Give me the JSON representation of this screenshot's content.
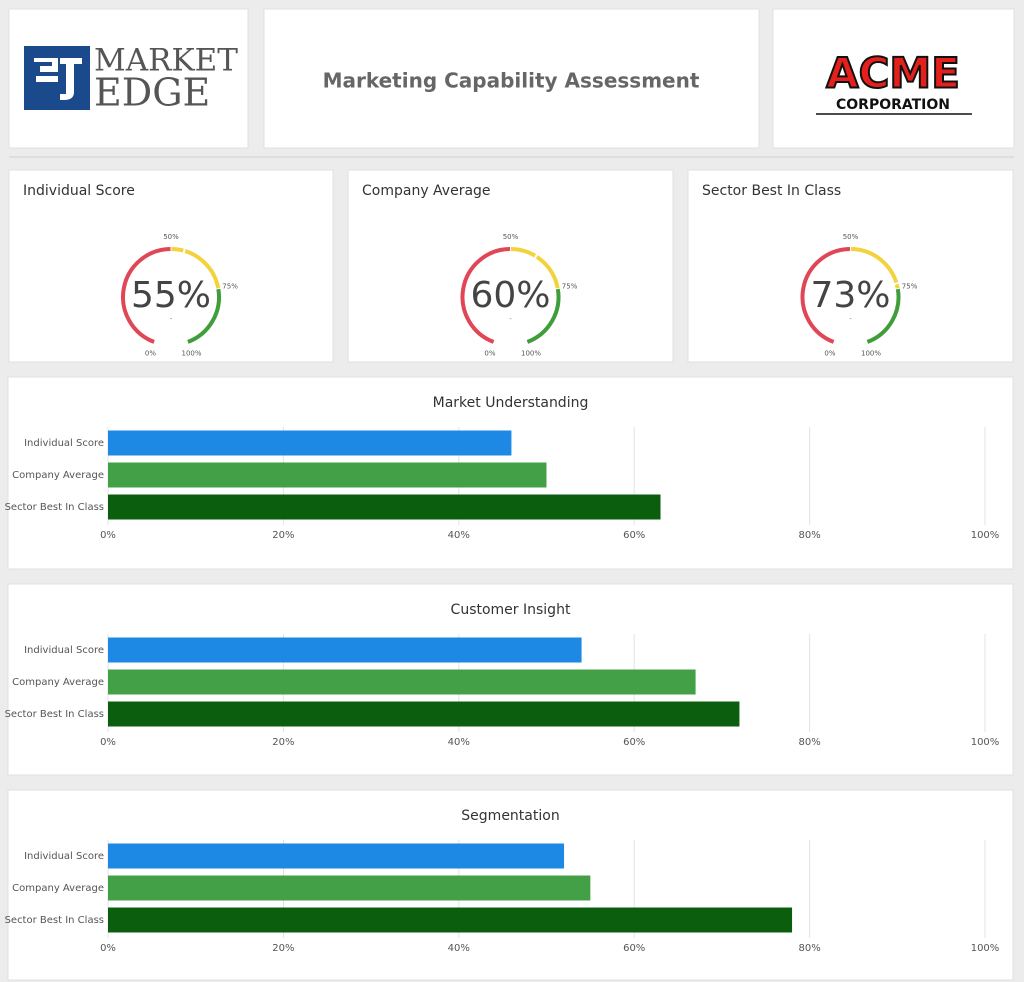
{
  "header": {
    "logo_left": [
      "MARKET",
      "EDGE"
    ],
    "title": "Marketing Capability Assessment",
    "logo_right": [
      "ACME",
      "CORPORATION"
    ]
  },
  "chart_data": [
    {
      "type": "gauge",
      "title": "Individual Score",
      "values": [
        55
      ],
      "value_labels": [
        "55%"
      ],
      "label": "-",
      "lim": [
        0,
        100
      ],
      "ticks": [
        {
          "value": 0,
          "label": "0%"
        },
        {
          "value": 50,
          "label": "50%"
        },
        {
          "value": 75,
          "label": "75%"
        },
        {
          "value": 100,
          "label": "100%"
        }
      ],
      "bands": [
        {
          "from": 0,
          "to": 50,
          "color": "#e04655"
        },
        {
          "from": 50,
          "to": 75,
          "color": "#f2d33d"
        },
        {
          "from": 75,
          "to": 100,
          "color": "#3f9e3a"
        }
      ]
    },
    {
      "type": "gauge",
      "title": "Company Average",
      "values": [
        60
      ],
      "value_labels": [
        "60%"
      ],
      "label": "-",
      "lim": [
        0,
        100
      ],
      "ticks": [
        {
          "value": 0,
          "label": "0%"
        },
        {
          "value": 50,
          "label": "50%"
        },
        {
          "value": 75,
          "label": "75%"
        },
        {
          "value": 100,
          "label": "100%"
        }
      ],
      "bands": [
        {
          "from": 0,
          "to": 50,
          "color": "#e04655"
        },
        {
          "from": 50,
          "to": 75,
          "color": "#f2d33d"
        },
        {
          "from": 75,
          "to": 100,
          "color": "#3f9e3a"
        }
      ]
    },
    {
      "type": "gauge",
      "title": "Sector Best In Class",
      "values": [
        73
      ],
      "value_labels": [
        "73%"
      ],
      "label": "-",
      "lim": [
        0,
        100
      ],
      "ticks": [
        {
          "value": 0,
          "label": "0%"
        },
        {
          "value": 50,
          "label": "50%"
        },
        {
          "value": 75,
          "label": "75%"
        },
        {
          "value": 100,
          "label": "100%"
        }
      ],
      "bands": [
        {
          "from": 0,
          "to": 50,
          "color": "#e04655"
        },
        {
          "from": 50,
          "to": 75,
          "color": "#f2d33d"
        },
        {
          "from": 75,
          "to": 100,
          "color": "#3f9e3a"
        }
      ]
    },
    {
      "type": "bar",
      "title": "Market Understanding",
      "categories": [
        "Individual Score",
        "Company Average",
        "Sector Best In Class"
      ],
      "values": [
        46,
        50,
        63
      ],
      "colors": [
        "#1e88e5",
        "#43a047",
        "#0a5e0d"
      ],
      "xlim": [
        0,
        100
      ],
      "xticks": [
        {
          "value": 0,
          "label": "0%"
        },
        {
          "value": 20,
          "label": "20%"
        },
        {
          "value": 40,
          "label": "40%"
        },
        {
          "value": 60,
          "label": "60%"
        },
        {
          "value": 80,
          "label": "80%"
        },
        {
          "value": 100,
          "label": "100%"
        }
      ],
      "grid": true
    },
    {
      "type": "bar",
      "title": "Customer Insight",
      "categories": [
        "Individual Score",
        "Company Average",
        "Sector Best In Class"
      ],
      "values": [
        54,
        67,
        72
      ],
      "colors": [
        "#1e88e5",
        "#43a047",
        "#0a5e0d"
      ],
      "xlim": [
        0,
        100
      ],
      "xticks": [
        {
          "value": 0,
          "label": "0%"
        },
        {
          "value": 20,
          "label": "20%"
        },
        {
          "value": 40,
          "label": "40%"
        },
        {
          "value": 60,
          "label": "60%"
        },
        {
          "value": 80,
          "label": "80%"
        },
        {
          "value": 100,
          "label": "100%"
        }
      ],
      "grid": true
    },
    {
      "type": "bar",
      "title": "Segmentation",
      "categories": [
        "Individual Score",
        "Company Average",
        "Sector Best In Class"
      ],
      "values": [
        52,
        55,
        78
      ],
      "colors": [
        "#1e88e5",
        "#43a047",
        "#0a5e0d"
      ],
      "xlim": [
        0,
        100
      ],
      "xticks": [
        {
          "value": 0,
          "label": "0%"
        },
        {
          "value": 20,
          "label": "20%"
        },
        {
          "value": 40,
          "label": "40%"
        },
        {
          "value": 60,
          "label": "60%"
        },
        {
          "value": 80,
          "label": "80%"
        },
        {
          "value": 100,
          "label": "100%"
        }
      ],
      "grid": true
    }
  ]
}
